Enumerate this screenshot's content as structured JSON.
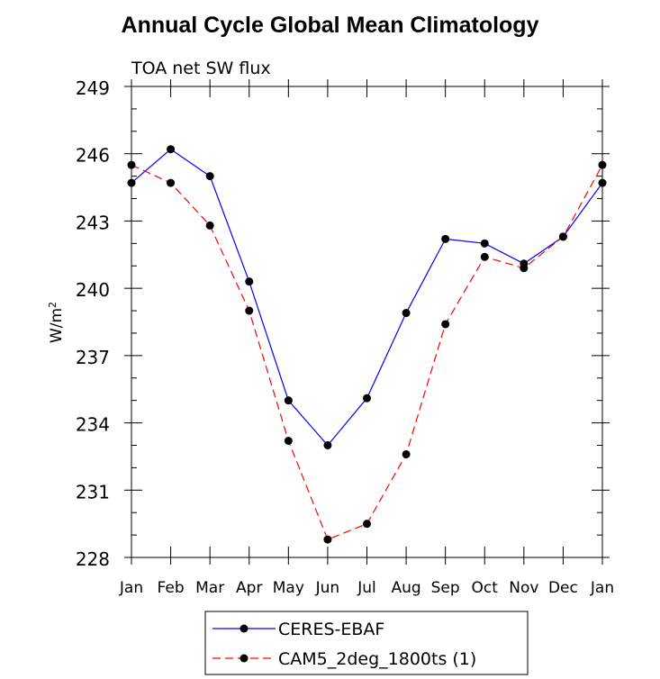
{
  "chart_data": {
    "type": "line",
    "title": "Annual Cycle Global Mean Climatology",
    "subtitle": "TOA net SW flux",
    "ylabel": "W/m",
    "ylabel_sup": "2",
    "xlabel": "",
    "categories": [
      "Jan",
      "Feb",
      "Mar",
      "Apr",
      "May",
      "Jun",
      "Jul",
      "Aug",
      "Sep",
      "Oct",
      "Nov",
      "Dec",
      "Jan"
    ],
    "ylim": [
      228,
      249
    ],
    "yticks": [
      228,
      231,
      234,
      237,
      240,
      243,
      246,
      249
    ],
    "grid": false,
    "legend_position": "bottom",
    "series": [
      {
        "name": "CERES-EBAF",
        "color": "#0000ff",
        "dash": "solid",
        "values": [
          244.7,
          246.2,
          245.0,
          240.3,
          235.0,
          233.0,
          235.1,
          238.9,
          242.2,
          242.0,
          241.1,
          242.3,
          244.7
        ]
      },
      {
        "name": "CAM5_2deg_1800ts (1)",
        "color": "#ff0000",
        "dash": "dashed",
        "values": [
          245.5,
          244.7,
          242.8,
          239.0,
          233.2,
          228.8,
          229.5,
          232.6,
          238.4,
          241.4,
          240.9,
          242.3,
          245.5
        ]
      }
    ]
  }
}
